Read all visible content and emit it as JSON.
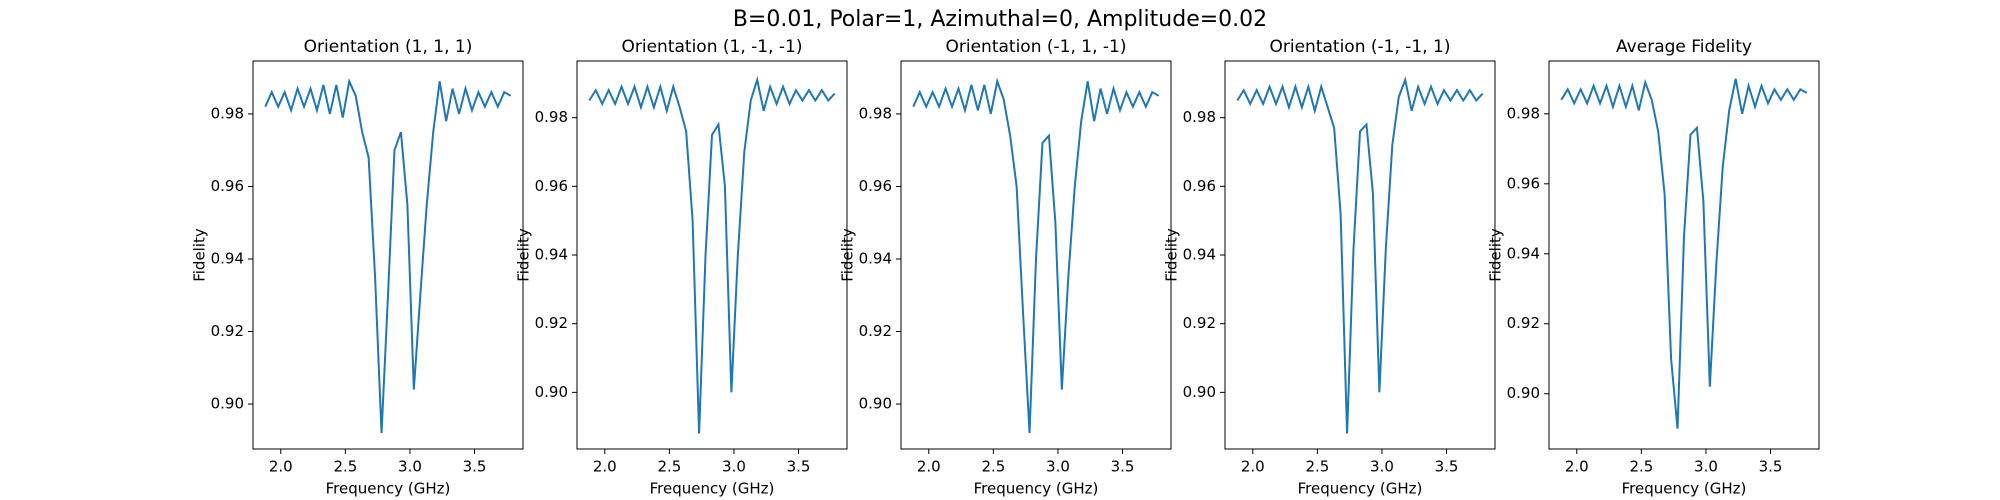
{
  "title": "B=0.01, Polar=1, Azimuthal=0, Amplitude=0.02",
  "chart_data": [
    {
      "type": "line",
      "title": "Orientation (1, 1, 1)",
      "x_label": "Frequency (GHz)",
      "y_label": "Fidelity",
      "x": [
        1.88,
        1.93,
        1.98,
        2.03,
        2.08,
        2.13,
        2.18,
        2.23,
        2.28,
        2.33,
        2.38,
        2.43,
        2.48,
        2.53,
        2.58,
        2.63,
        2.68,
        2.73,
        2.78,
        2.83,
        2.88,
        2.93,
        2.98,
        3.03,
        3.08,
        3.13,
        3.18,
        3.23,
        3.28,
        3.33,
        3.38,
        3.43,
        3.48,
        3.53,
        3.58,
        3.63,
        3.68,
        3.73,
        3.78
      ],
      "series": [
        {
          "color": "#1f77b4",
          "values": [
            0.982,
            0.986,
            0.982,
            0.986,
            0.981,
            0.987,
            0.982,
            0.987,
            0.981,
            0.988,
            0.98,
            0.988,
            0.979,
            0.989,
            0.985,
            0.975,
            0.968,
            0.935,
            0.892,
            0.93,
            0.97,
            0.975,
            0.955,
            0.904,
            0.93,
            0.955,
            0.975,
            0.989,
            0.978,
            0.987,
            0.98,
            0.987,
            0.981,
            0.986,
            0.982,
            0.986,
            0.982,
            0.986,
            0.985
          ]
        }
      ],
      "xlim": [
        1.785,
        3.875
      ],
      "ylim": [
        0.8876,
        0.9946
      ],
      "xticks": [
        {
          "value": 2,
          "label": "2.0"
        },
        2.5,
        {
          "value": 3,
          "label": "3.0"
        },
        3.5
      ],
      "yticks": [
        {
          "value": 0.9,
          "label": "0.90"
        },
        0.92,
        0.94,
        0.96,
        0.98
      ]
    },
    {
      "type": "line",
      "title": "Orientation (1, -1, -1)",
      "x_label": "Frequency (GHz)",
      "y_label": "Fidelity",
      "x": [
        1.88,
        1.93,
        1.98,
        2.03,
        2.08,
        2.13,
        2.18,
        2.23,
        2.28,
        2.33,
        2.38,
        2.43,
        2.48,
        2.53,
        2.58,
        2.63,
        2.68,
        2.73,
        2.78,
        2.83,
        2.88,
        2.93,
        2.98,
        3.03,
        3.08,
        3.13,
        3.18,
        3.23,
        3.28,
        3.33,
        3.38,
        3.43,
        3.48,
        3.53,
        3.58,
        3.63,
        3.68,
        3.73,
        3.78
      ],
      "series": [
        {
          "color": "#1f77b4",
          "values": [
            0.985,
            0.988,
            0.984,
            0.988,
            0.984,
            0.989,
            0.984,
            0.989,
            0.983,
            0.989,
            0.983,
            0.989,
            0.982,
            0.989,
            0.983,
            0.976,
            0.95,
            0.888,
            0.94,
            0.975,
            0.978,
            0.96,
            0.9,
            0.94,
            0.97,
            0.985,
            0.991,
            0.982,
            0.989,
            0.984,
            0.989,
            0.984,
            0.988,
            0.985,
            0.988,
            0.985,
            0.988,
            0.985,
            0.987
          ]
        }
      ],
      "xlim": [
        1.785,
        3.875
      ],
      "ylim": [
        0.8835,
        0.9965
      ],
      "xticks": [
        {
          "value": 2,
          "label": "2.0"
        },
        2.5,
        {
          "value": 3,
          "label": "3.0"
        },
        3.5
      ],
      "yticks": [
        {
          "value": 0.9,
          "label": "0.90"
        },
        0.92,
        0.94,
        0.96,
        0.98
      ]
    },
    {
      "type": "line",
      "title": "Orientation (-1, 1, -1)",
      "x_label": "Frequency (GHz)",
      "y_label": "Fidelity",
      "x": [
        1.88,
        1.93,
        1.98,
        2.03,
        2.08,
        2.13,
        2.18,
        2.23,
        2.28,
        2.33,
        2.38,
        2.43,
        2.48,
        2.53,
        2.58,
        2.63,
        2.68,
        2.73,
        2.78,
        2.83,
        2.88,
        2.93,
        2.98,
        3.03,
        3.08,
        3.13,
        3.18,
        3.23,
        3.28,
        3.33,
        3.38,
        3.43,
        3.48,
        3.53,
        3.58,
        3.63,
        3.68,
        3.73,
        3.78
      ],
      "series": [
        {
          "color": "#1f77b4",
          "values": [
            0.982,
            0.986,
            0.982,
            0.986,
            0.982,
            0.987,
            0.982,
            0.987,
            0.981,
            0.988,
            0.981,
            0.988,
            0.98,
            0.989,
            0.984,
            0.974,
            0.96,
            0.925,
            0.892,
            0.94,
            0.972,
            0.974,
            0.95,
            0.904,
            0.935,
            0.96,
            0.978,
            0.989,
            0.978,
            0.987,
            0.98,
            0.987,
            0.981,
            0.986,
            0.982,
            0.986,
            0.982,
            0.986,
            0.985
          ]
        }
      ],
      "xlim": [
        1.785,
        3.875
      ],
      "ylim": [
        0.8876,
        0.9946
      ],
      "xticks": [
        {
          "value": 2,
          "label": "2.0"
        },
        2.5,
        {
          "value": 3,
          "label": "3.0"
        },
        3.5
      ],
      "yticks": [
        {
          "value": 0.9,
          "label": "0.90"
        },
        0.92,
        0.94,
        0.96,
        0.98
      ]
    },
    {
      "type": "line",
      "title": "Orientation (-1, -1, 1)",
      "x_label": "Frequency (GHz)",
      "y_label": "Fidelity",
      "x": [
        1.88,
        1.93,
        1.98,
        2.03,
        2.08,
        2.13,
        2.18,
        2.23,
        2.28,
        2.33,
        2.38,
        2.43,
        2.48,
        2.53,
        2.58,
        2.63,
        2.68,
        2.73,
        2.78,
        2.83,
        2.88,
        2.93,
        2.98,
        3.03,
        3.08,
        3.13,
        3.18,
        3.23,
        3.28,
        3.33,
        3.38,
        3.43,
        3.48,
        3.53,
        3.58,
        3.63,
        3.68,
        3.73,
        3.78
      ],
      "series": [
        {
          "color": "#1f77b4",
          "values": [
            0.985,
            0.988,
            0.984,
            0.988,
            0.984,
            0.989,
            0.984,
            0.989,
            0.983,
            0.989,
            0.983,
            0.989,
            0.982,
            0.989,
            0.983,
            0.977,
            0.952,
            0.888,
            0.942,
            0.976,
            0.978,
            0.958,
            0.9,
            0.942,
            0.972,
            0.986,
            0.991,
            0.982,
            0.989,
            0.984,
            0.989,
            0.984,
            0.988,
            0.985,
            0.988,
            0.985,
            0.988,
            0.985,
            0.987
          ]
        }
      ],
      "xlim": [
        1.785,
        3.875
      ],
      "ylim": [
        0.8835,
        0.9965
      ],
      "xticks": [
        {
          "value": 2,
          "label": "2.0"
        },
        2.5,
        {
          "value": 3,
          "label": "3.0"
        },
        3.5
      ],
      "yticks": [
        {
          "value": 0.9,
          "label": "0.90"
        },
        0.92,
        0.94,
        0.96,
        0.98
      ]
    },
    {
      "type": "line",
      "title": "Average Fidelity",
      "x_label": "Frequency (GHz)",
      "y_label": "Fidelity",
      "x": [
        1.88,
        1.93,
        1.98,
        2.03,
        2.08,
        2.13,
        2.18,
        2.23,
        2.28,
        2.33,
        2.38,
        2.43,
        2.48,
        2.53,
        2.58,
        2.63,
        2.68,
        2.73,
        2.78,
        2.83,
        2.88,
        2.93,
        2.98,
        3.03,
        3.08,
        3.13,
        3.18,
        3.23,
        3.28,
        3.33,
        3.38,
        3.43,
        3.48,
        3.53,
        3.58,
        3.63,
        3.68,
        3.73,
        3.78
      ],
      "series": [
        {
          "color": "#1f77b4",
          "values": [
            0.984,
            0.987,
            0.983,
            0.987,
            0.983,
            0.988,
            0.983,
            0.988,
            0.982,
            0.988,
            0.982,
            0.988,
            0.981,
            0.989,
            0.984,
            0.975,
            0.957,
            0.91,
            0.89,
            0.945,
            0.974,
            0.976,
            0.955,
            0.902,
            0.937,
            0.965,
            0.981,
            0.99,
            0.98,
            0.988,
            0.982,
            0.988,
            0.983,
            0.987,
            0.984,
            0.987,
            0.984,
            0.987,
            0.986
          ]
        }
      ],
      "xlim": [
        1.785,
        3.875
      ],
      "ylim": [
        0.8842,
        0.9951
      ],
      "xticks": [
        {
          "value": 2,
          "label": "2.0"
        },
        2.5,
        {
          "value": 3,
          "label": "3.0"
        },
        3.5
      ],
      "yticks": [
        {
          "value": 0.9,
          "label": "0.90"
        },
        0.92,
        0.94,
        0.96,
        0.98
      ]
    }
  ]
}
